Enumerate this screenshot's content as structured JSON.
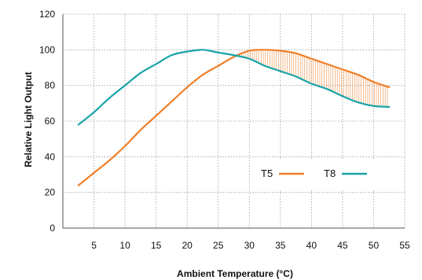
{
  "chart_data": {
    "type": "line",
    "title": "",
    "xlabel": "Ambient Temperature (°C)",
    "ylabel": "Relative Light Output",
    "xlim": [
      0,
      55
    ],
    "ylim": [
      0,
      120
    ],
    "x_ticks": [
      5,
      10,
      15,
      20,
      25,
      30,
      35,
      40,
      45,
      50,
      55
    ],
    "y_ticks": [
      0,
      20,
      40,
      60,
      80,
      100,
      120
    ],
    "x_tick_labels": [
      "5",
      "10",
      "15",
      "20",
      "25",
      "30",
      "35",
      "40",
      "45",
      "50",
      "55"
    ],
    "y_tick_labels": [
      "0",
      "20",
      "40",
      "60",
      "80",
      "100",
      "120"
    ],
    "grid": true,
    "grid_style": "dotted",
    "legend_position": "bottom-right",
    "shaded_region": "vertical hatching between T5 and T8 where T5 exceeds T8",
    "series": [
      {
        "name": "T5",
        "color": "#f07f28",
        "x": [
          2.5,
          5,
          7.5,
          10,
          12.5,
          15,
          17.5,
          20,
          22.5,
          25,
          27.5,
          30,
          32.5,
          35,
          37.5,
          40,
          42.5,
          45,
          47.5,
          50,
          52.5
        ],
        "y": [
          24,
          31,
          38,
          46,
          55,
          63,
          71,
          79,
          86,
          91,
          96,
          99.5,
          100,
          99.5,
          98,
          95,
          92,
          89,
          86,
          82,
          79
        ]
      },
      {
        "name": "T8",
        "color": "#1aa3a8",
        "x": [
          2.5,
          5,
          7.5,
          10,
          12.5,
          15,
          17.5,
          20,
          22.5,
          25,
          27.5,
          30,
          32.5,
          35,
          37.5,
          40,
          42.5,
          45,
          47.5,
          50,
          52.5
        ],
        "y": [
          58,
          65,
          73,
          80,
          87,
          92,
          97,
          99,
          100,
          98.5,
          97,
          95,
          91,
          88,
          85,
          81,
          78,
          74,
          70.5,
          68.5,
          68
        ]
      }
    ]
  }
}
